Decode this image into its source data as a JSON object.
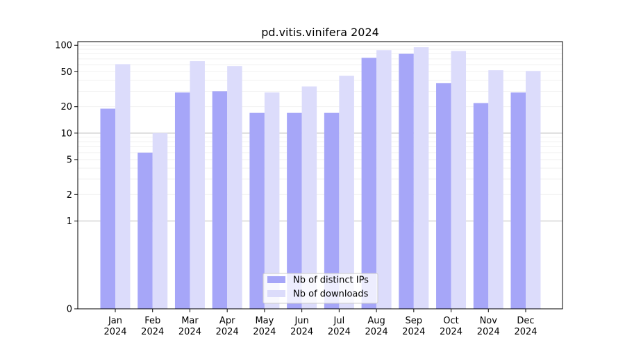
{
  "chart_data": {
    "type": "bar",
    "title": "pd.vitis.vinifera 2024",
    "xlabel": "",
    "ylabel": "",
    "yscale": "symlog",
    "ylim": [
      0,
      110
    ],
    "yticks": [
      0,
      1,
      2,
      5,
      10,
      20,
      50,
      100
    ],
    "ytick_labels": [
      "0",
      "1",
      "2",
      "5",
      "10",
      "20",
      "50",
      "100"
    ],
    "categories": [
      "Jan\n2024",
      "Feb\n2024",
      "Mar\n2024",
      "Apr\n2024",
      "May\n2024",
      "Jun\n2024",
      "Jul\n2024",
      "Aug\n2024",
      "Sep\n2024",
      "Oct\n2024",
      "Nov\n2024",
      "Dec\n2024"
    ],
    "series": [
      {
        "name": "Nb of distinct IPs",
        "color": "#a6a6f8",
        "values": [
          19,
          6,
          29,
          30,
          17,
          17,
          17,
          72,
          80,
          37,
          22,
          29
        ]
      },
      {
        "name": "Nb of downloads",
        "color": "#dcdcfb",
        "values": [
          61,
          10,
          66,
          58,
          29,
          34,
          45,
          88,
          95,
          86,
          52,
          51
        ]
      }
    ],
    "grid": true,
    "legend": "lower-center"
  }
}
